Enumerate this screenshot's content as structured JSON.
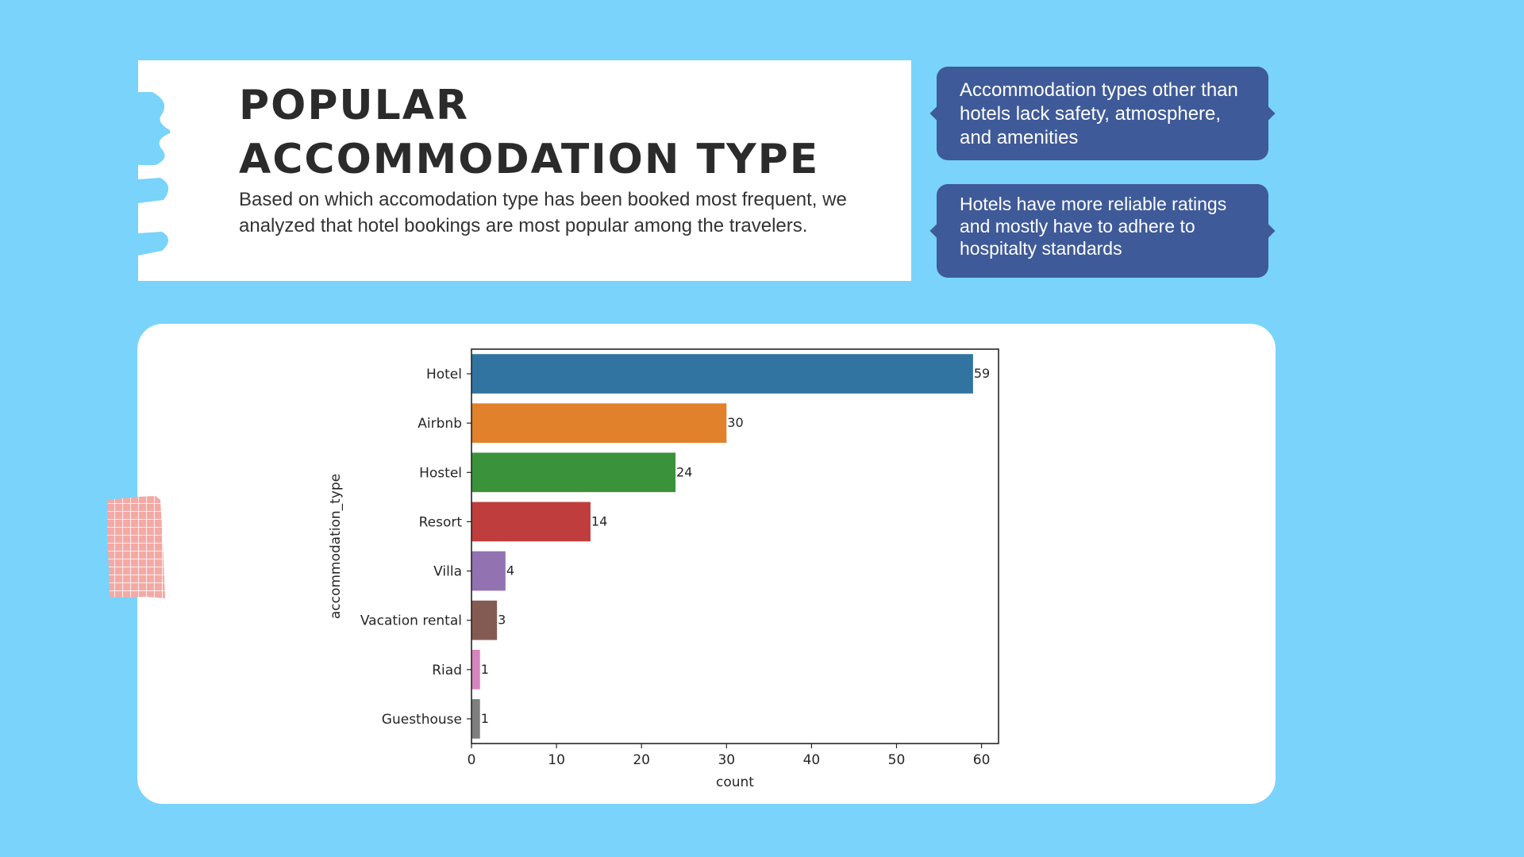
{
  "header": {
    "title_line1": "POPULAR",
    "title_line2": "ACCOMMODATION TYPE",
    "subtitle": "Based on which accomodation type has been booked most frequent, we analyzed that hotel bookings are most popular among the travelers."
  },
  "notes": [
    "Accommodation types other than hotels lack safety, atmosphere, and amenities",
    "Hotels have more reliable ratings and mostly have to adhere to hospitalty standards"
  ],
  "colors": {
    "background": "#79d3fb",
    "note": "#3f5a98"
  },
  "chart_data": {
    "type": "bar",
    "orientation": "horizontal",
    "categories": [
      "Hotel",
      "Airbnb",
      "Hostel",
      "Resort",
      "Villa",
      "Vacation rental",
      "Riad",
      "Guesthouse"
    ],
    "values": [
      59,
      30,
      24,
      14,
      4,
      3,
      1,
      1
    ],
    "data_labels": [
      "59",
      "30",
      "24",
      "14",
      "4",
      "3",
      "1",
      "1"
    ],
    "colors": [
      "#3274a1",
      "#e1812c",
      "#3a923a",
      "#c03d3e",
      "#9372b2",
      "#845b53",
      "#d684bd",
      "#7f7f7f"
    ],
    "xlabel": "count",
    "ylabel": "accommodation_type",
    "xlim": [
      0,
      62
    ],
    "xticks": [
      0,
      10,
      20,
      30,
      40,
      50,
      60
    ],
    "grid": false
  }
}
